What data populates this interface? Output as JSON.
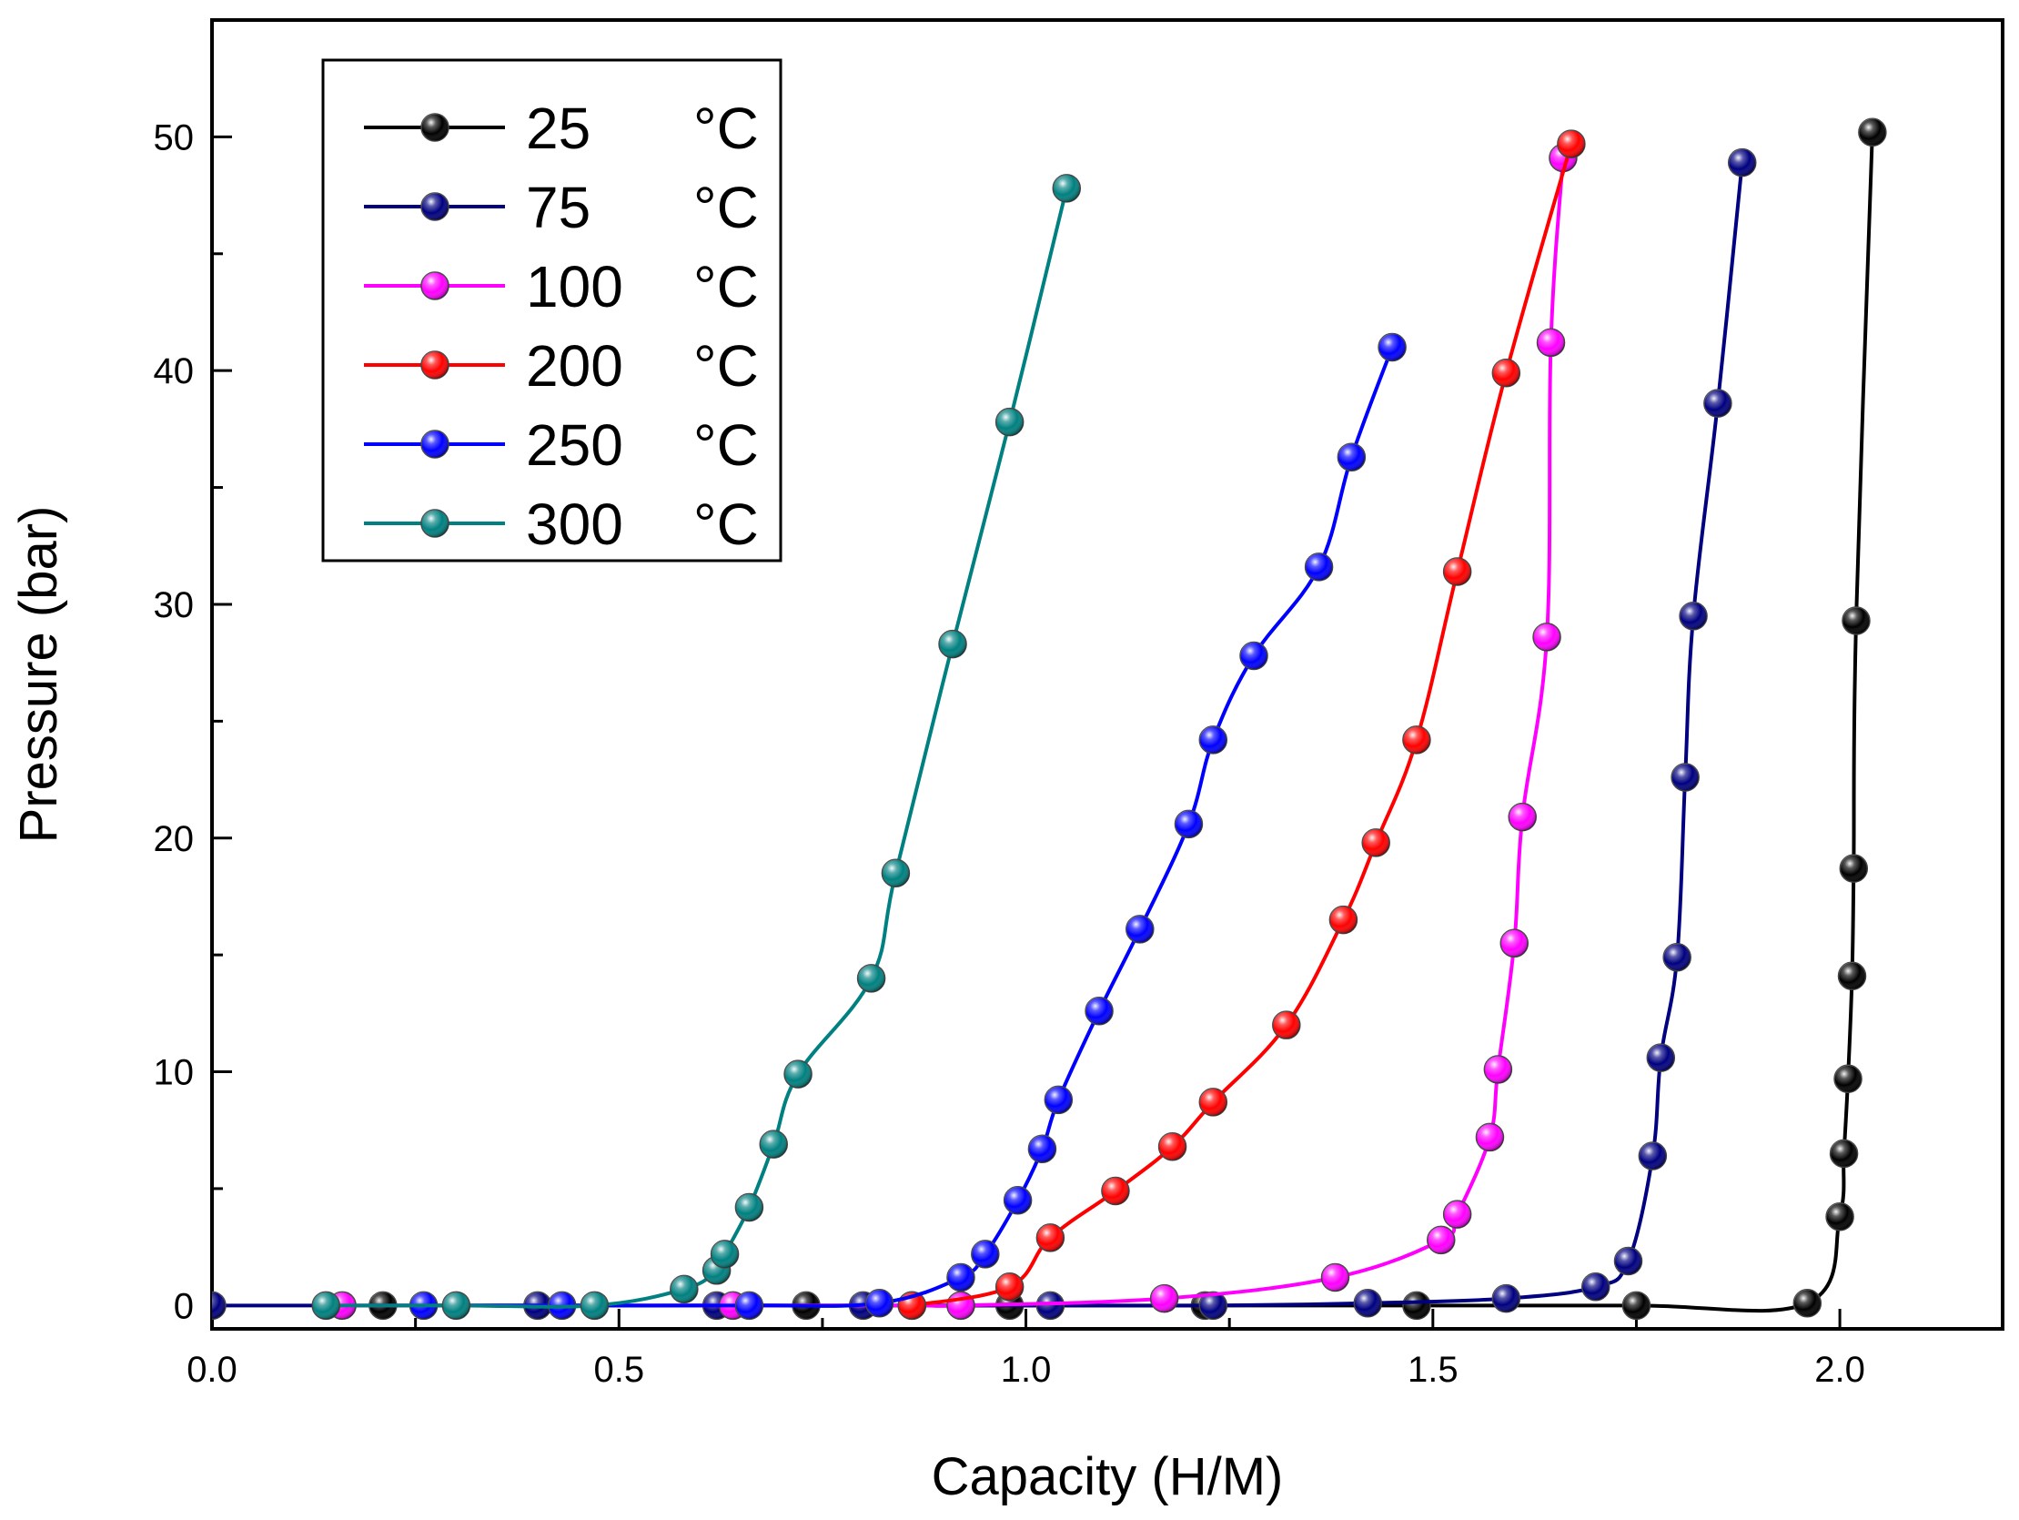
{
  "chart_data": {
    "type": "line",
    "title": "",
    "xlabel": "Capacity (H/M)",
    "ylabel": "Pressure (bar)",
    "xlim": [
      0.0,
      2.2
    ],
    "ylim": [
      -1,
      55
    ],
    "x_ticks": [
      0.0,
      0.5,
      1.0,
      1.5,
      2.0
    ],
    "x_tick_labels": [
      "0.0",
      "0.5",
      "1.0",
      "1.5",
      "2.0"
    ],
    "y_ticks": [
      0,
      10,
      20,
      30,
      40,
      50
    ],
    "y_tick_labels": [
      "0",
      "10",
      "20",
      "30",
      "40",
      "50"
    ],
    "grid": false,
    "legend_position": "top-left",
    "series": [
      {
        "name": "25",
        "unit": "°C",
        "color": "#000000",
        "x": [
          0.21,
          0.73,
          0.98,
          1.22,
          1.48,
          1.75,
          1.96,
          2.0,
          2.005,
          2.01,
          2.015,
          2.017,
          2.02,
          2.04
        ],
        "y": [
          0,
          0,
          0,
          0,
          0,
          0,
          0.1,
          3.8,
          6.5,
          9.7,
          14.1,
          18.7,
          29.3,
          50.2
        ]
      },
      {
        "name": "75",
        "unit": "°C",
        "color": "#000080",
        "x": [
          0.0,
          0.4,
          0.62,
          0.8,
          1.03,
          1.23,
          1.42,
          1.59,
          1.7,
          1.74,
          1.77,
          1.78,
          1.8,
          1.81,
          1.82,
          1.85,
          1.88
        ],
        "y": [
          0,
          0,
          0,
          0,
          0,
          0,
          0.1,
          0.3,
          0.8,
          1.9,
          6.4,
          10.6,
          14.9,
          22.6,
          29.5,
          38.6,
          48.9
        ]
      },
      {
        "name": "100",
        "unit": "°C",
        "color": "#ff00ff",
        "x": [
          0.16,
          0.64,
          0.86,
          0.92,
          1.17,
          1.38,
          1.51,
          1.53,
          1.57,
          1.58,
          1.6,
          1.61,
          1.64,
          1.645,
          1.66
        ],
        "y": [
          0,
          0,
          0,
          0,
          0.3,
          1.2,
          2.8,
          3.9,
          7.2,
          10.1,
          15.5,
          20.9,
          28.6,
          41.2,
          49.1
        ]
      },
      {
        "name": "200",
        "unit": "°C",
        "color": "#ff0000",
        "x": [
          0.86,
          0.98,
          1.03,
          1.11,
          1.18,
          1.23,
          1.32,
          1.39,
          1.43,
          1.48,
          1.53,
          1.59,
          1.67
        ],
        "y": [
          0,
          0.8,
          2.9,
          4.9,
          6.8,
          8.7,
          12.0,
          16.5,
          19.8,
          24.2,
          31.4,
          39.9,
          49.7
        ]
      },
      {
        "name": "250",
        "unit": "°C",
        "color": "#0000ff",
        "x": [
          0.26,
          0.43,
          0.66,
          0.82,
          0.92,
          0.95,
          0.99,
          1.02,
          1.04,
          1.09,
          1.14,
          1.2,
          1.23,
          1.28,
          1.36,
          1.4,
          1.45
        ],
        "y": [
          0,
          0,
          0,
          0.1,
          1.2,
          2.2,
          4.5,
          6.7,
          8.8,
          12.6,
          16.1,
          20.6,
          24.2,
          27.8,
          31.6,
          36.3,
          41.0
        ]
      },
      {
        "name": "300",
        "unit": "°C",
        "color": "#008080",
        "x": [
          0.14,
          0.3,
          0.47,
          0.58,
          0.62,
          0.63,
          0.66,
          0.69,
          0.72,
          0.81,
          0.84,
          0.91,
          0.98,
          1.05
        ],
        "y": [
          0,
          0,
          0,
          0.7,
          1.5,
          2.2,
          4.2,
          6.9,
          9.9,
          14.0,
          18.5,
          28.3,
          37.8,
          47.8
        ]
      }
    ]
  }
}
